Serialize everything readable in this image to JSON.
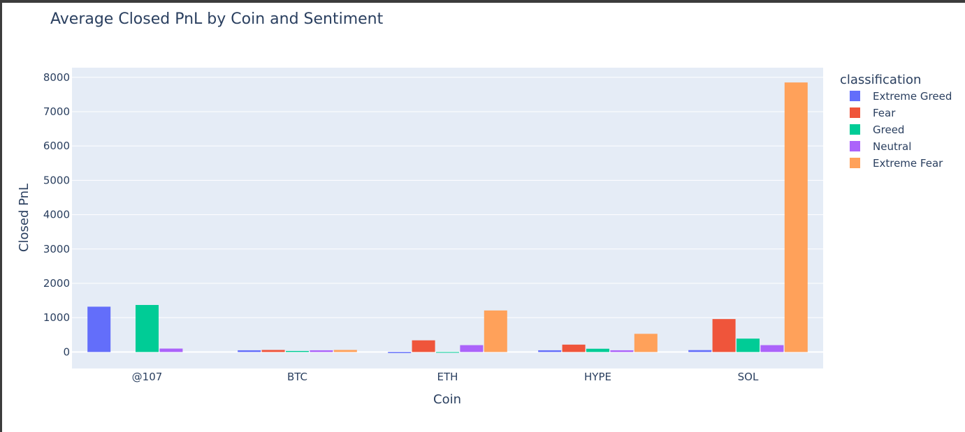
{
  "chart_data": {
    "type": "bar",
    "title": "Average Closed PnL by Coin and Sentiment",
    "xlabel": "Coin",
    "ylabel": "Closed PnL",
    "categories": [
      "@107",
      "BTC",
      "ETH",
      "HYPE",
      "SOL"
    ],
    "ylim": [
      -480,
      8280
    ],
    "yticks": [
      0,
      1000,
      2000,
      3000,
      4000,
      5000,
      6000,
      7000,
      8000
    ],
    "grid": true,
    "legend_title": "classification",
    "legend_position": "right",
    "series": [
      {
        "name": "Extreme Greed",
        "color": "#636efa",
        "values": [
          1320,
          50,
          -30,
          50,
          55
        ]
      },
      {
        "name": "Fear",
        "color": "#ef553b",
        "values": [
          null,
          60,
          340,
          215,
          960
        ]
      },
      {
        "name": "Greed",
        "color": "#00cc96",
        "values": [
          1370,
          30,
          -20,
          95,
          390
        ]
      },
      {
        "name": "Neutral",
        "color": "#ab63fa",
        "values": [
          100,
          50,
          200,
          50,
          200
        ]
      },
      {
        "name": "Extreme Fear",
        "color": "#ffa15a",
        "values": [
          null,
          60,
          1210,
          530,
          7850
        ]
      }
    ]
  }
}
